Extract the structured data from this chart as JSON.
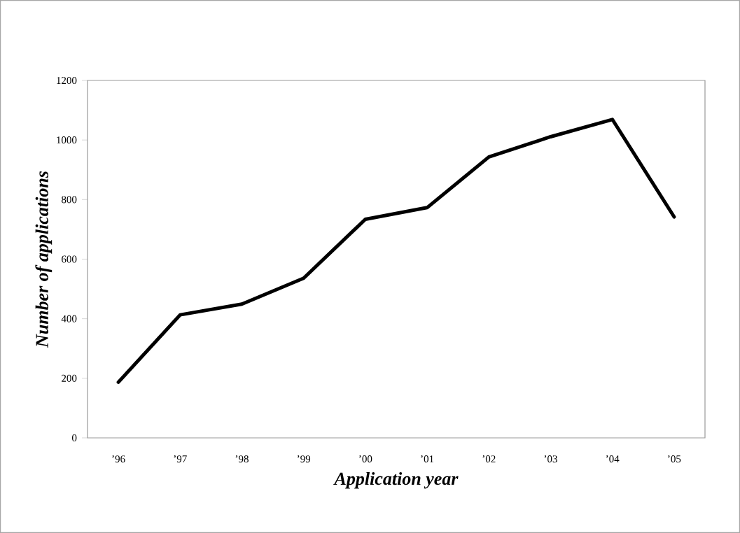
{
  "chart_data": {
    "type": "line",
    "xlabel": "Application year",
    "ylabel": "Number of applications",
    "categories": [
      "’96",
      "’97",
      "’98",
      "’99",
      "’00",
      "’01",
      "’02",
      "’03",
      "’04",
      "’05"
    ],
    "series": [
      {
        "color": "#000000",
        "values": [
          187,
          413,
          449,
          536,
          734,
          773,
          943,
          1011,
          1069,
          742
        ]
      }
    ],
    "ylim": [
      0,
      1200
    ],
    "yticks": [
      0,
      200,
      400,
      600,
      800,
      1000,
      1200
    ],
    "grid": false,
    "marker": "none",
    "line_style": "solid"
  }
}
